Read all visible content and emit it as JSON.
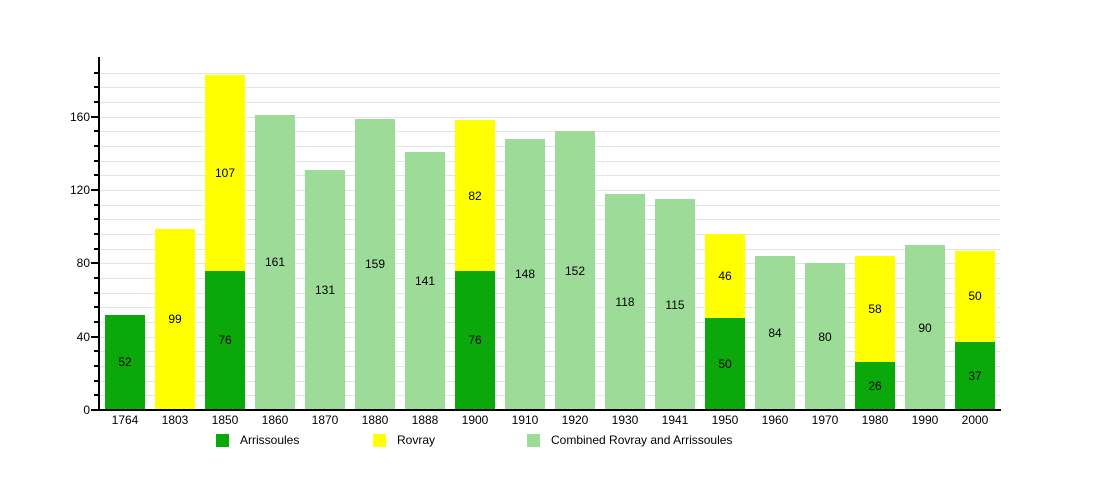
{
  "chart_data": {
    "type": "bar",
    "stacked": true,
    "title": "",
    "xlabel": "",
    "ylabel": "",
    "categories": [
      "1764",
      "1803",
      "1850",
      "1860",
      "1870",
      "1880",
      "1888",
      "1900",
      "1910",
      "1920",
      "1930",
      "1941",
      "1950",
      "1960",
      "1970",
      "1980",
      "1990",
      "2000"
    ],
    "series": [
      {
        "name": "Arrissoules",
        "color": "#0aa80a",
        "values": [
          52,
          null,
          76,
          null,
          null,
          null,
          null,
          76,
          null,
          null,
          null,
          null,
          50,
          null,
          null,
          26,
          null,
          37
        ]
      },
      {
        "name": "Rovray",
        "color": "#ffff00",
        "values": [
          null,
          99,
          107,
          null,
          null,
          null,
          null,
          82,
          null,
          null,
          null,
          null,
          46,
          null,
          null,
          58,
          null,
          50
        ]
      },
      {
        "name": "Combined Rovray and Arrissoules",
        "color": "#9cdc98",
        "values": [
          null,
          null,
          null,
          161,
          131,
          159,
          141,
          null,
          148,
          152,
          118,
          115,
          null,
          84,
          80,
          null,
          90,
          null
        ]
      }
    ],
    "yticks": [
      0,
      40,
      80,
      120,
      160
    ],
    "ylim": [
      0,
      193
    ],
    "grid": true,
    "grid_step": 8,
    "legend_position": "bottom",
    "axis_color": "#000000",
    "gridline_color": "#e4e4e4",
    "label_color": "#000000"
  },
  "legend": {
    "items": [
      {
        "label": "Arrissoules",
        "color": "#0aa80a"
      },
      {
        "label": "Rovray",
        "color": "#ffff00"
      },
      {
        "label": "Combined Rovray and Arrissoules",
        "color": "#9cdc98"
      }
    ]
  }
}
